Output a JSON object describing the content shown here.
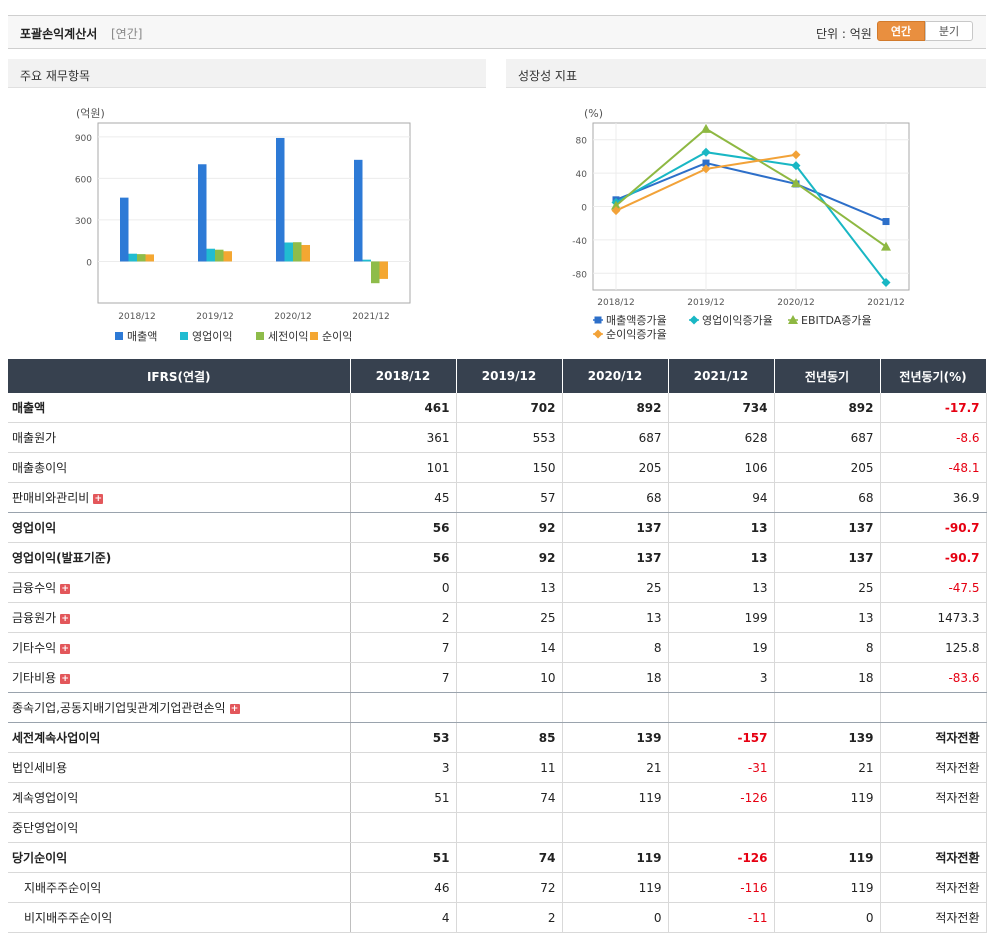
{
  "header": {
    "title": "포괄손익계산서",
    "sub": "[연간]",
    "unit_label": "단위 : 억원",
    "toggle_annual": "연간",
    "toggle_quarter": "분기"
  },
  "panels": {
    "left_title": "주요 재무항목",
    "right_title": "성장성 지표"
  },
  "chart_data": [
    {
      "type": "bar",
      "unit": "(억원)",
      "categories": [
        "2018/12",
        "2019/12",
        "2020/12",
        "2021/12"
      ],
      "ylim": [
        -300,
        1000
      ],
      "yticks": [
        "900",
        "600",
        "300",
        "0"
      ],
      "series": [
        {
          "name": "매출액",
          "color": "#2d7ad6",
          "values": [
            461,
            702,
            892,
            734
          ]
        },
        {
          "name": "영업이익",
          "color": "#21bcd1",
          "values": [
            56,
            92,
            137,
            13
          ]
        },
        {
          "name": "세전이익",
          "color": "#8ebc4a",
          "values": [
            53,
            85,
            139,
            -157
          ]
        },
        {
          "name": "순이익",
          "color": "#f4a732",
          "values": [
            51,
            74,
            119,
            -126
          ]
        }
      ]
    },
    {
      "type": "line",
      "unit": "(%)",
      "categories": [
        "2018/12",
        "2019/12",
        "2020/12",
        "2021/12"
      ],
      "ylim": [
        -100,
        100
      ],
      "yticks": [
        "80",
        "40",
        "0",
        "-40",
        "-80"
      ],
      "series": [
        {
          "name": "매출액증가율",
          "color": "#2d6fc9",
          "marker": "square",
          "values": [
            8,
            52,
            27,
            -18
          ]
        },
        {
          "name": "영업이익증가율",
          "color": "#19b7c4",
          "marker": "diamond",
          "values": [
            5,
            65,
            49,
            -91
          ]
        },
        {
          "name": "EBITDA증가율",
          "color": "#8eb842",
          "marker": "triangle",
          "values": [
            1,
            93,
            28,
            -48
          ]
        },
        {
          "name": "순이익증가율",
          "color": "#f2a238",
          "marker": "diamond",
          "values": [
            -5,
            45,
            62,
            null
          ]
        }
      ]
    }
  ],
  "table": {
    "headers": [
      "IFRS(연결)",
      "2018/12",
      "2019/12",
      "2020/12",
      "2021/12",
      "전년동기",
      "전년동기(%)"
    ],
    "rows": [
      {
        "label": "매출액",
        "bold": true,
        "plus": false,
        "indent": false,
        "values": [
          "461",
          "702",
          "892",
          "734",
          "892",
          "-17.7"
        ],
        "neg": [
          false,
          false,
          false,
          false,
          false,
          true
        ]
      },
      {
        "label": "매출원가",
        "bold": false,
        "plus": false,
        "indent": false,
        "values": [
          "361",
          "553",
          "687",
          "628",
          "687",
          "-8.6"
        ],
        "neg": [
          false,
          false,
          false,
          false,
          false,
          true
        ]
      },
      {
        "label": "매출총이익",
        "bold": false,
        "plus": false,
        "indent": false,
        "values": [
          "101",
          "150",
          "205",
          "106",
          "205",
          "-48.1"
        ],
        "neg": [
          false,
          false,
          false,
          false,
          false,
          true
        ]
      },
      {
        "label": "판매비와관리비",
        "bold": false,
        "plus": true,
        "indent": false,
        "values": [
          "45",
          "57",
          "68",
          "94",
          "68",
          "36.9"
        ],
        "neg": [
          false,
          false,
          false,
          false,
          false,
          false
        ]
      },
      {
        "label": "영업이익",
        "bold": true,
        "plus": false,
        "indent": false,
        "values": [
          "56",
          "92",
          "137",
          "13",
          "137",
          "-90.7"
        ],
        "neg": [
          false,
          false,
          false,
          false,
          false,
          true
        ]
      },
      {
        "label": "영업이익(발표기준)",
        "bold": true,
        "plus": false,
        "indent": false,
        "values": [
          "56",
          "92",
          "137",
          "13",
          "137",
          "-90.7"
        ],
        "neg": [
          false,
          false,
          false,
          false,
          false,
          true
        ]
      },
      {
        "label": "금융수익",
        "bold": false,
        "plus": true,
        "indent": false,
        "values": [
          "0",
          "13",
          "25",
          "13",
          "25",
          "-47.5"
        ],
        "neg": [
          false,
          false,
          false,
          false,
          false,
          true
        ]
      },
      {
        "label": "금융원가",
        "bold": false,
        "plus": true,
        "indent": false,
        "values": [
          "2",
          "25",
          "13",
          "199",
          "13",
          "1473.3"
        ],
        "neg": [
          false,
          false,
          false,
          false,
          false,
          false
        ]
      },
      {
        "label": "기타수익",
        "bold": false,
        "plus": true,
        "indent": false,
        "values": [
          "7",
          "14",
          "8",
          "19",
          "8",
          "125.8"
        ],
        "neg": [
          false,
          false,
          false,
          false,
          false,
          false
        ]
      },
      {
        "label": "기타비용",
        "bold": false,
        "plus": true,
        "indent": false,
        "values": [
          "7",
          "10",
          "18",
          "3",
          "18",
          "-83.6"
        ],
        "neg": [
          false,
          false,
          false,
          false,
          false,
          true
        ]
      },
      {
        "label": "종속기업,공동지배기업및관계기업관련손익",
        "bold": false,
        "plus": true,
        "indent": false,
        "values": [
          "",
          "",
          "",
          "",
          "",
          ""
        ],
        "neg": [
          false,
          false,
          false,
          false,
          false,
          false
        ]
      },
      {
        "label": "세전계속사업이익",
        "bold": true,
        "plus": false,
        "indent": false,
        "values": [
          "53",
          "85",
          "139",
          "-157",
          "139",
          "적자전환"
        ],
        "neg": [
          false,
          false,
          false,
          true,
          false,
          false
        ]
      },
      {
        "label": "법인세비용",
        "bold": false,
        "plus": false,
        "indent": false,
        "values": [
          "3",
          "11",
          "21",
          "-31",
          "21",
          "적자전환"
        ],
        "neg": [
          false,
          false,
          false,
          true,
          false,
          false
        ]
      },
      {
        "label": "계속영업이익",
        "bold": false,
        "plus": false,
        "indent": false,
        "values": [
          "51",
          "74",
          "119",
          "-126",
          "119",
          "적자전환"
        ],
        "neg": [
          false,
          false,
          false,
          true,
          false,
          false
        ]
      },
      {
        "label": "중단영업이익",
        "bold": false,
        "plus": false,
        "indent": false,
        "values": [
          "",
          "",
          "",
          "",
          "",
          ""
        ],
        "neg": [
          false,
          false,
          false,
          false,
          false,
          false
        ]
      },
      {
        "label": "당기순이익",
        "bold": true,
        "plus": false,
        "indent": false,
        "values": [
          "51",
          "74",
          "119",
          "-126",
          "119",
          "적자전환"
        ],
        "neg": [
          false,
          false,
          false,
          true,
          false,
          false
        ]
      },
      {
        "label": "지배주주순이익",
        "bold": false,
        "plus": false,
        "indent": true,
        "values": [
          "46",
          "72",
          "119",
          "-116",
          "119",
          "적자전환"
        ],
        "neg": [
          false,
          false,
          false,
          true,
          false,
          false
        ]
      },
      {
        "label": "비지배주주순이익",
        "bold": false,
        "plus": false,
        "indent": true,
        "values": [
          "4",
          "2",
          "0",
          "-11",
          "0",
          "적자전환"
        ],
        "neg": [
          false,
          false,
          false,
          true,
          false,
          false
        ]
      }
    ]
  }
}
